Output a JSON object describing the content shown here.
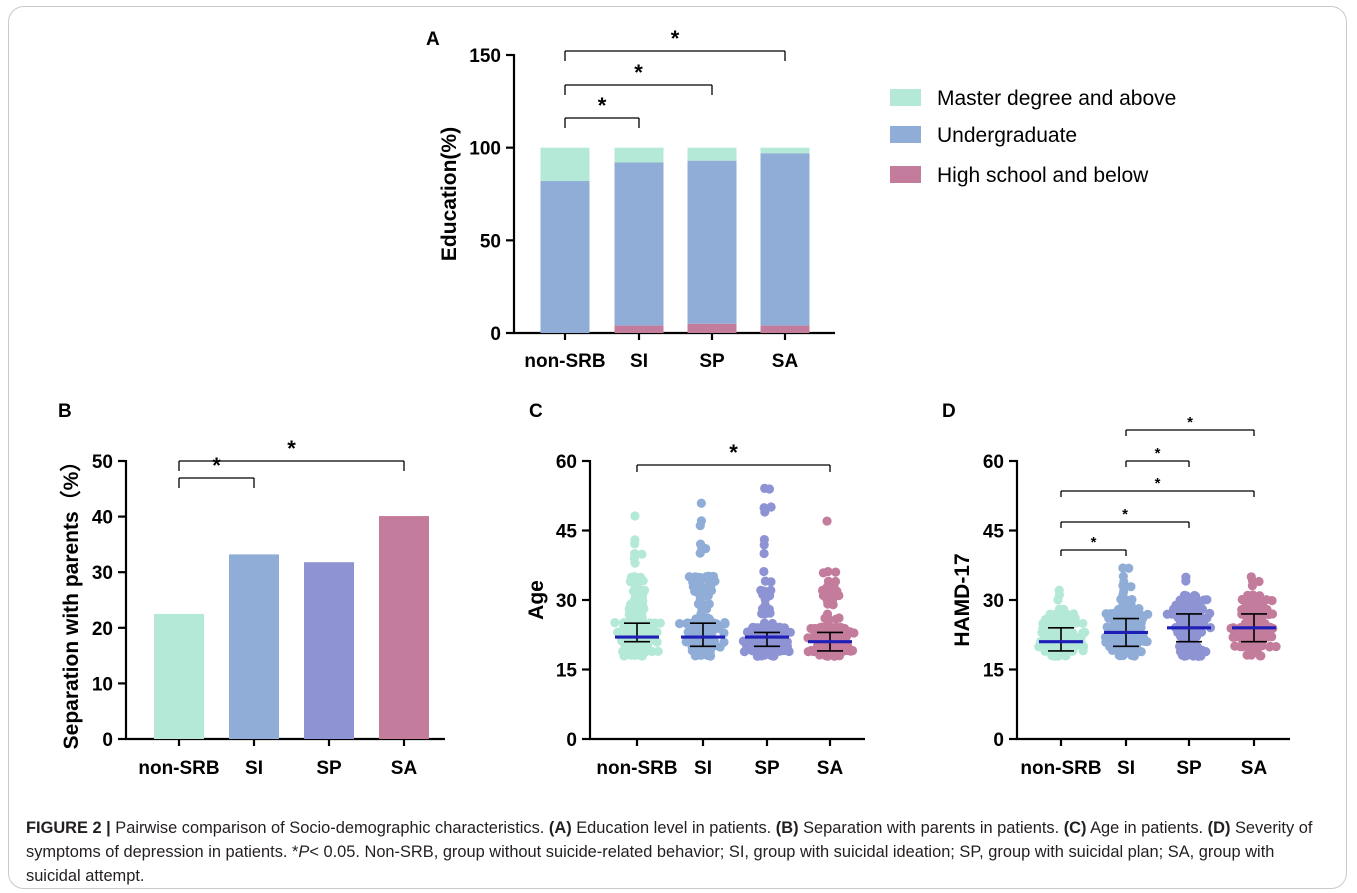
{
  "chart_data": [
    {
      "panel": "A",
      "type": "bar",
      "stacked": true,
      "categories": [
        "non-SRB",
        "SI",
        "SP",
        "SA"
      ],
      "series": [
        {
          "name": "High school and below",
          "color": "#c47c9c",
          "values": [
            0,
            4,
            5,
            4
          ]
        },
        {
          "name": "Undergraduate",
          "color": "#8fadd6",
          "values": [
            82,
            88,
            88,
            93
          ]
        },
        {
          "name": "Master degree and above",
          "color": "#b4e9d8",
          "values": [
            18,
            8,
            7,
            3
          ]
        }
      ],
      "ylabel": "Education(%)",
      "ylim": [
        0,
        150
      ],
      "yticks": [
        "0",
        "50",
        "100",
        "150"
      ],
      "legend_position": "right",
      "significance": [
        {
          "from": 0,
          "to": 1,
          "label": "*"
        },
        {
          "from": 0,
          "to": 2,
          "label": "*"
        },
        {
          "from": 0,
          "to": 3,
          "label": "*"
        }
      ]
    },
    {
      "panel": "B",
      "type": "bar",
      "categories": [
        "non-SRB",
        "SI",
        "SP",
        "SA"
      ],
      "values": [
        22.5,
        33.2,
        31.8,
        40.1
      ],
      "colors": [
        "#b4e9d8",
        "#8fadd6",
        "#8d93d3",
        "#c47c9c"
      ],
      "ylabel": "Separation with parents（%）",
      "ylim": [
        0,
        50
      ],
      "yticks": [
        "0",
        "10",
        "20",
        "30",
        "40",
        "50"
      ],
      "significance": [
        {
          "from": 0,
          "to": 1,
          "label": "*"
        },
        {
          "from": 0,
          "to": 3,
          "label": "*"
        }
      ]
    },
    {
      "panel": "C",
      "type": "scatter",
      "categories": [
        "non-SRB",
        "SI",
        "SP",
        "SA"
      ],
      "colors": [
        "#b4e9d8",
        "#8fadd6",
        "#8d93d3",
        "#c47c9c"
      ],
      "median": [
        22,
        22,
        22,
        21
      ],
      "q1": [
        21,
        20,
        20,
        19
      ],
      "q3": [
        25,
        25,
        23,
        23
      ],
      "min": [
        18,
        18,
        18,
        18
      ],
      "max": [
        48,
        51,
        54,
        47
      ],
      "ylabel": "Age",
      "ylim": [
        0,
        60
      ],
      "yticks": [
        "0",
        "15",
        "30",
        "45",
        "60"
      ],
      "significance": [
        {
          "from": 0,
          "to": 3,
          "label": "*"
        }
      ]
    },
    {
      "panel": "D",
      "type": "scatter",
      "categories": [
        "non-SRB",
        "SI",
        "SP",
        "SA"
      ],
      "colors": [
        "#b4e9d8",
        "#8fadd6",
        "#8d93d3",
        "#c47c9c"
      ],
      "median": [
        21,
        23,
        24,
        24
      ],
      "q1": [
        19,
        20,
        21,
        21
      ],
      "q3": [
        24,
        26,
        27,
        27
      ],
      "min": [
        18,
        18,
        18,
        18
      ],
      "max": [
        32,
        37,
        35,
        35
      ],
      "ylabel": "HAMD-17",
      "ylim": [
        0,
        60
      ],
      "yticks": [
        "0",
        "15",
        "30",
        "45",
        "60"
      ],
      "significance": [
        {
          "from": 0,
          "to": 1,
          "label": "*"
        },
        {
          "from": 0,
          "to": 2,
          "label": "*"
        },
        {
          "from": 0,
          "to": 3,
          "label": "*"
        },
        {
          "from": 1,
          "to": 2,
          "label": "*"
        },
        {
          "from": 1,
          "to": 3,
          "label": "*"
        }
      ]
    }
  ],
  "caption": {
    "figure_label": "FIGURE 2 |",
    "lead": " Pairwise comparison of Socio-demographic characteristics. ",
    "a_label": "(A)",
    "a_text": " Education level in patients. ",
    "b_label": "(B)",
    "b_text": " Separation with parents in patients. ",
    "c_label": "(C)",
    "c_text": " Age in patients. ",
    "d_label": "(D)",
    "d_text": " Severity of symptoms of depression in patients. *",
    "p_symbol": "P",
    "tail": "< 0.05. Non-SRB, group without suicide-related behavior; SI, group with suicidal ideation; SP, group with suicidal plan; SA, group with suicidal attempt."
  }
}
